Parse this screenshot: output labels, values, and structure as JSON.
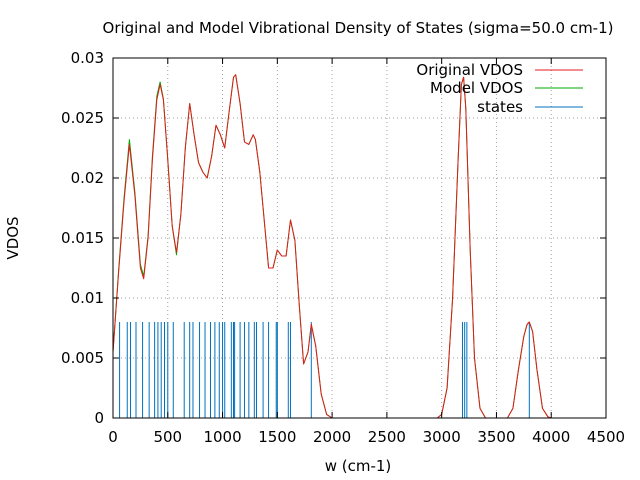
{
  "chart_data": {
    "type": "line",
    "title": "Original and Model Vibrational Density of States (sigma=50.0 cm-1)",
    "xlabel": "w (cm-1)",
    "ylabel": "VDOS",
    "xlim": [
      0,
      4500
    ],
    "ylim": [
      0,
      0.03
    ],
    "x_ticks": [
      "0",
      "500",
      "1000",
      "1500",
      "2000",
      "2500",
      "3000",
      "3500",
      "4000",
      "4500"
    ],
    "y_ticks": [
      "0",
      "0.005",
      "0.01",
      "0.015",
      "0.02",
      "0.025",
      "0.03"
    ],
    "grid": true,
    "legend_position": "top-right",
    "series": [
      {
        "name": "Original VDOS",
        "color": "#e41a1c",
        "kind": "line",
        "x": [
          0,
          50,
          100,
          150,
          200,
          250,
          280,
          320,
          360,
          400,
          430,
          460,
          500,
          540,
          580,
          620,
          660,
          700,
          740,
          780,
          820,
          860,
          900,
          940,
          980,
          1020,
          1060,
          1100,
          1120,
          1160,
          1200,
          1240,
          1280,
          1300,
          1340,
          1380,
          1420,
          1460,
          1500,
          1540,
          1580,
          1620,
          1660,
          1700,
          1740,
          1780,
          1810,
          1850,
          1900,
          1950,
          2000,
          2500,
          2960,
          3000,
          3050,
          3100,
          3150,
          3180,
          3200,
          3220,
          3260,
          3300,
          3350,
          3400,
          3600,
          3650,
          3700,
          3750,
          3780,
          3800,
          3830,
          3870,
          3920,
          3970,
          4000,
          4300
        ],
        "y": [
          0.0055,
          0.012,
          0.018,
          0.0228,
          0.0185,
          0.0125,
          0.0116,
          0.015,
          0.0215,
          0.0265,
          0.0278,
          0.0265,
          0.0215,
          0.016,
          0.0138,
          0.017,
          0.0225,
          0.0262,
          0.0236,
          0.0213,
          0.0205,
          0.02,
          0.0218,
          0.0244,
          0.0236,
          0.0225,
          0.0255,
          0.0284,
          0.0286,
          0.0262,
          0.023,
          0.0228,
          0.0236,
          0.0232,
          0.0205,
          0.0165,
          0.0125,
          0.0125,
          0.014,
          0.0135,
          0.0135,
          0.0165,
          0.0148,
          0.0095,
          0.0045,
          0.0055,
          0.0078,
          0.006,
          0.002,
          0.0003,
          0.0,
          0.0,
          0.0,
          0.0003,
          0.0025,
          0.01,
          0.0215,
          0.0278,
          0.0284,
          0.0258,
          0.014,
          0.005,
          0.0008,
          0.0,
          0.0,
          0.0008,
          0.004,
          0.0068,
          0.0078,
          0.008,
          0.0072,
          0.004,
          0.0008,
          0.0001,
          0.0,
          0.0
        ]
      },
      {
        "name": "Model VDOS",
        "color": "#00a800",
        "kind": "line",
        "x": [
          0,
          50,
          100,
          150,
          200,
          250,
          280,
          320,
          360,
          400,
          430,
          460,
          500,
          540,
          580,
          620,
          660,
          700,
          740,
          780,
          820,
          860,
          900,
          940,
          980,
          1020,
          1060,
          1100,
          1120,
          1160,
          1200,
          1240,
          1280,
          1300,
          1340,
          1380,
          1420,
          1460,
          1500,
          1540,
          1580,
          1620,
          1660,
          1700,
          1740,
          1780,
          1810,
          1850,
          1900,
          1950,
          2000,
          2500,
          2960,
          3000,
          3050,
          3100,
          3150,
          3180,
          3200,
          3220,
          3260,
          3300,
          3350,
          3400,
          3600,
          3650,
          3700,
          3750,
          3780,
          3800,
          3830,
          3870,
          3920,
          3970,
          4000,
          4300
        ],
        "y": [
          0.0055,
          0.0122,
          0.0183,
          0.0232,
          0.0188,
          0.0128,
          0.0118,
          0.0152,
          0.0218,
          0.0268,
          0.028,
          0.0266,
          0.0215,
          0.016,
          0.0136,
          0.017,
          0.0225,
          0.0262,
          0.0236,
          0.0213,
          0.0205,
          0.02,
          0.0218,
          0.0244,
          0.0236,
          0.0225,
          0.0255,
          0.0284,
          0.0286,
          0.0262,
          0.023,
          0.0228,
          0.0236,
          0.0232,
          0.0205,
          0.0165,
          0.0125,
          0.0125,
          0.014,
          0.0135,
          0.0135,
          0.0165,
          0.0148,
          0.0095,
          0.0045,
          0.0055,
          0.0078,
          0.006,
          0.002,
          0.0003,
          0.0,
          0.0,
          0.0,
          0.0003,
          0.0025,
          0.01,
          0.0215,
          0.0278,
          0.0284,
          0.0258,
          0.014,
          0.005,
          0.0008,
          0.0,
          0.0,
          0.0008,
          0.004,
          0.0068,
          0.0078,
          0.008,
          0.0072,
          0.004,
          0.0008,
          0.0001,
          0.0,
          0.0
        ]
      },
      {
        "name": "states",
        "color": "#0072bd",
        "kind": "impulses",
        "height": 0.008,
        "x": [
          60,
          130,
          160,
          210,
          270,
          330,
          380,
          410,
          440,
          470,
          500,
          550,
          650,
          700,
          730,
          790,
          840,
          890,
          930,
          970,
          1000,
          1020,
          1080,
          1100,
          1110,
          1160,
          1200,
          1240,
          1290,
          1310,
          1370,
          1420,
          1490,
          1500,
          1600,
          1620,
          1810,
          3190,
          3210,
          3230,
          3800
        ]
      }
    ]
  }
}
